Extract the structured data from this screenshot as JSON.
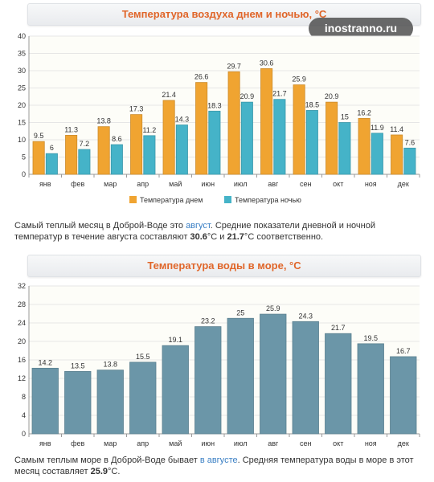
{
  "watermark": "inostranno.ru",
  "chart_data": [
    {
      "type": "bar",
      "title": "Температура воздуха днем и ночью, °C",
      "categories": [
        "янв",
        "фев",
        "мар",
        "апр",
        "май",
        "июн",
        "июл",
        "авг",
        "сен",
        "окт",
        "ноя",
        "дек"
      ],
      "series": [
        {
          "name": "Температура днем",
          "color": "#f0a431",
          "values": [
            9.5,
            11.3,
            13.8,
            17.3,
            21.4,
            26.6,
            29.7,
            30.6,
            25.9,
            20.9,
            16.2,
            11.4
          ]
        },
        {
          "name": "Температура ночью",
          "color": "#45b3c8",
          "values": [
            6.0,
            7.2,
            8.6,
            11.2,
            14.3,
            18.3,
            20.9,
            21.7,
            18.5,
            15.0,
            11.9,
            7.6
          ]
        }
      ],
      "ylim": [
        0,
        40
      ],
      "yticks": [
        0,
        5,
        10,
        15,
        20,
        25,
        30,
        35,
        40
      ],
      "grid": true,
      "legend": "bottom"
    },
    {
      "type": "bar",
      "title": "Температура воды в море, °C",
      "categories": [
        "янв",
        "фев",
        "мар",
        "апр",
        "май",
        "июн",
        "июл",
        "авг",
        "сен",
        "окт",
        "ноя",
        "дек"
      ],
      "series": [
        {
          "color": "#6b96a8",
          "values": [
            14.2,
            13.5,
            13.8,
            15.5,
            19.1,
            23.2,
            25,
            25.9,
            24.3,
            21.7,
            19.5,
            16.7
          ]
        }
      ],
      "ylim": [
        0,
        32
      ],
      "yticks": [
        0,
        4,
        8,
        12,
        16,
        20,
        24,
        28,
        32
      ],
      "grid": true
    }
  ],
  "paragraph1": {
    "t1": "Самый теплый месяц в Доброй-Воде это ",
    "link": "август",
    "t2": ". Средние показатели дневной и ночной температур в течение августа составляют ",
    "v1": "30.6",
    "t3": "°C и ",
    "v2": "21.7",
    "t4": "°C соответственно."
  },
  "paragraph2": {
    "t1": "Самым теплым море в Доброй-Воде бывает ",
    "link": "в августе",
    "t2": ". Средняя температура воды в море в этот месяц составляет ",
    "v1": "25.9",
    "t3": "°C."
  }
}
